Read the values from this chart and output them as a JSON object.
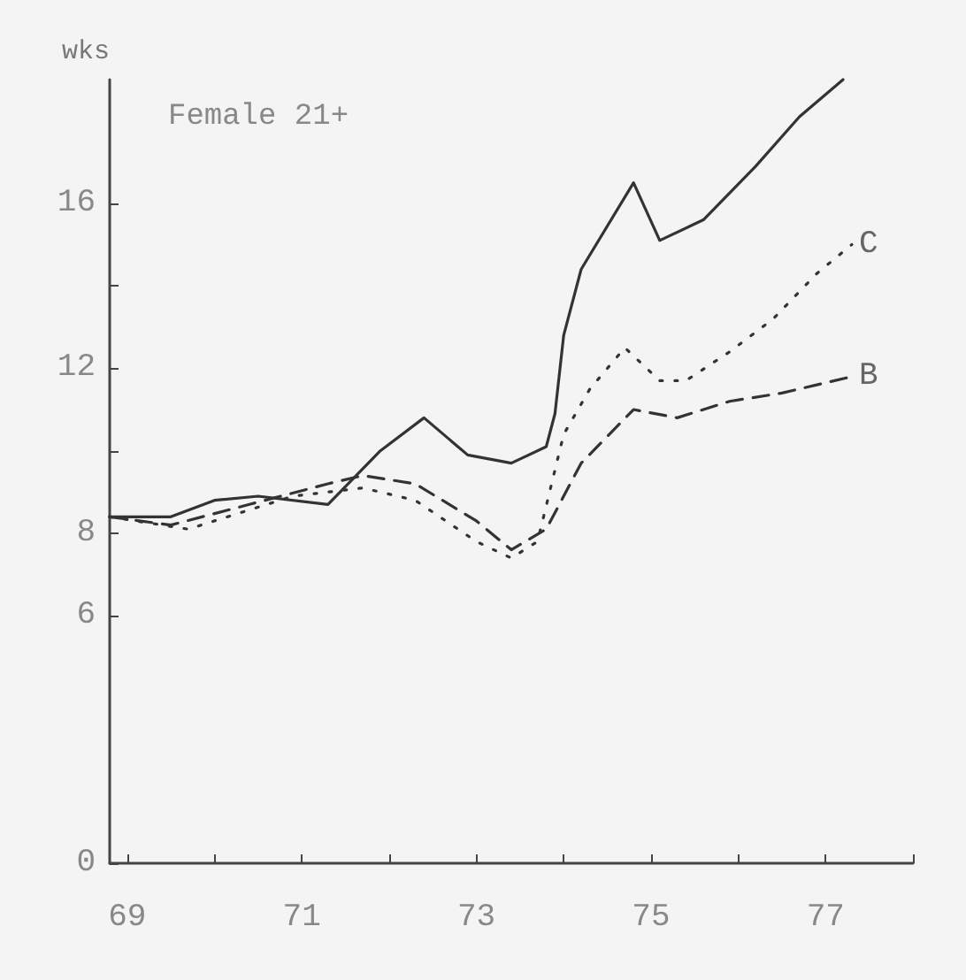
{
  "chart_data": {
    "type": "line",
    "ylabel": "wks",
    "annotations": [
      "Female 21+"
    ],
    "xlim": [
      68.8,
      78
    ],
    "xticks": [
      69,
      {
        "value": 70,
        "label": null
      },
      71,
      {
        "value": 72,
        "label": null
      },
      73,
      {
        "value": 74,
        "label": null
      },
      75,
      {
        "value": 76,
        "label": null
      },
      77,
      {
        "value": 78,
        "label": null
      }
    ],
    "ylim": [
      0,
      19
    ],
    "yticks": [
      0,
      6,
      8,
      {
        "value": 10,
        "label": null
      },
      12,
      {
        "value": 14,
        "label": null
      },
      16
    ],
    "grid": false,
    "legend": false,
    "series": [
      {
        "color": "#333333",
        "line_style": "solid",
        "x": [
          68.8,
          69.5,
          70.0,
          70.5,
          71.3,
          71.9,
          72.4,
          72.9,
          73.4,
          73.8,
          73.9,
          74.0,
          74.2,
          74.8,
          75.1,
          75.6,
          76.2,
          76.7,
          77.2
        ],
        "values": [
          8.4,
          8.4,
          8.8,
          8.9,
          8.7,
          10.0,
          10.8,
          9.9,
          9.7,
          10.1,
          10.9,
          12.8,
          14.4,
          16.5,
          15.1,
          15.6,
          16.9,
          18.1,
          19.0
        ]
      },
      {
        "name": "C",
        "color": "#333333",
        "line_style": "dotted",
        "x": [
          68.8,
          69.7,
          70.3,
          70.9,
          71.7,
          72.3,
          73.0,
          73.4,
          73.7,
          74.0,
          74.3,
          74.7,
          75.1,
          75.4,
          75.9,
          76.4,
          76.9,
          77.3
        ],
        "values": [
          8.4,
          8.1,
          8.5,
          8.9,
          9.1,
          8.8,
          7.8,
          7.4,
          7.8,
          10.4,
          11.5,
          12.5,
          11.7,
          11.7,
          12.4,
          13.2,
          14.3,
          15.0
        ]
      },
      {
        "name": "B",
        "color": "#333333",
        "line_style": "dashed",
        "x": [
          68.8,
          69.5,
          70.4,
          71.3,
          71.7,
          72.3,
          73.0,
          73.4,
          73.8,
          74.2,
          74.8,
          75.3,
          75.9,
          76.5,
          77.3
        ],
        "values": [
          8.4,
          8.2,
          8.7,
          9.2,
          9.4,
          9.2,
          8.3,
          7.6,
          8.1,
          9.7,
          11.0,
          10.8,
          11.2,
          11.4,
          11.8
        ]
      }
    ]
  }
}
